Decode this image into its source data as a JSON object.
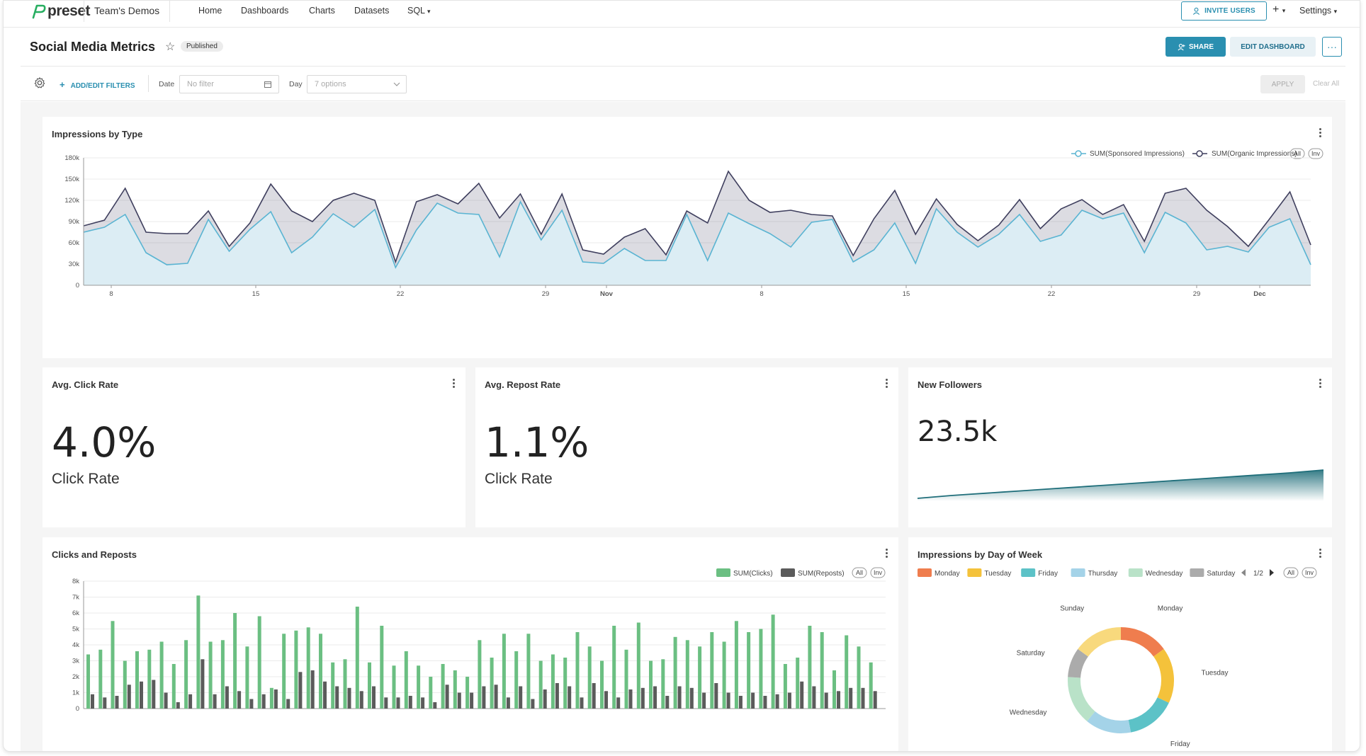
{
  "nav": {
    "brand": "preset",
    "team": "Team's Demos",
    "links": [
      "Home",
      "Dashboards",
      "Charts",
      "Datasets",
      "SQL"
    ],
    "sql_caret": "▾",
    "invite": "INVITE USERS",
    "plus": "+",
    "settings": "Settings"
  },
  "header": {
    "title": "Social Media Metrics",
    "status": "Published",
    "share": "SHARE",
    "edit": "EDIT DASHBOARD",
    "more": "···"
  },
  "filters": {
    "add": "ADD/EDIT FILTERS",
    "date_label": "Date",
    "date_placeholder": "No filter",
    "day_label": "Day",
    "day_placeholder": "7 options",
    "apply": "APPLY",
    "clear": "Clear All"
  },
  "colors": {
    "accent": "#2a8fb0",
    "sponsored": "#5ab4d2",
    "organic": "#3f3f5e",
    "clicks": "#6bbf82",
    "reposts": "#5b5b5b",
    "teal_dark": "#1f6e7a"
  },
  "cards": {
    "impressions": {
      "title": "Impressions by Type",
      "legend": [
        "SUM(Sponsored Impressions)",
        "SUM(Organic Impressions)"
      ],
      "all": "All",
      "inv": "Inv"
    },
    "click_rate": {
      "title": "Avg. Click Rate",
      "value": "4.0%",
      "label": "Click Rate"
    },
    "repost_rate": {
      "title": "Avg. Repost Rate",
      "value": "1.1%",
      "label": "Click Rate"
    },
    "followers": {
      "title": "New Followers",
      "value": "23.5k"
    },
    "clicks": {
      "title": "Clicks and Reposts",
      "legend": [
        "SUM(Clicks)",
        "SUM(Reposts)"
      ],
      "all": "All",
      "inv": "Inv"
    },
    "dow": {
      "title": "Impressions by Day of Week",
      "legend": [
        "Monday",
        "Tuesday",
        "Friday",
        "Thursday",
        "Wednesday",
        "Saturday"
      ],
      "page": "1/2",
      "all": "All",
      "inv": "Inv"
    }
  },
  "chart_data": [
    {
      "type": "area",
      "title": "Impressions by Type",
      "ylim": [
        0,
        180000
      ],
      "yticks": [
        "0",
        "30k",
        "60k",
        "90k",
        "120k",
        "150k",
        "180k"
      ],
      "xticks": [
        "8",
        "15",
        "22",
        "29",
        "Nov",
        "8",
        "15",
        "22",
        "29",
        "Dec"
      ],
      "series": [
        {
          "name": "SUM(Organic Impressions)",
          "values": [
            84000,
            92000,
            137000,
            75000,
            73000,
            73000,
            105000,
            55000,
            88000,
            143000,
            105000,
            90000,
            120000,
            130000,
            120000,
            33000,
            118000,
            128000,
            115000,
            144000,
            95000,
            129000,
            72000,
            129000,
            50000,
            44000,
            68000,
            80000,
            43000,
            105000,
            88000,
            161000,
            120000,
            103000,
            106000,
            100000,
            98000,
            42000,
            94000,
            134000,
            72000,
            122000,
            86000,
            63000,
            85000,
            121000,
            80000,
            108000,
            121000,
            100000,
            114000,
            62000,
            130000,
            137000,
            106000,
            83000,
            55000,
            93000,
            132000,
            57000
          ]
        },
        {
          "name": "SUM(Sponsored Impressions)",
          "values": [
            75000,
            82000,
            100000,
            46000,
            29000,
            31000,
            93000,
            48000,
            79000,
            104000,
            46000,
            68000,
            101000,
            82000,
            107000,
            25000,
            78000,
            116000,
            102000,
            100000,
            40000,
            118000,
            64000,
            106000,
            33000,
            31000,
            52000,
            35000,
            35000,
            100000,
            35000,
            102000,
            87000,
            73000,
            54000,
            89000,
            93000,
            33000,
            50000,
            88000,
            31000,
            108000,
            75000,
            54000,
            72000,
            100000,
            62000,
            71000,
            106000,
            94000,
            102000,
            46000,
            103000,
            88000,
            50000,
            55000,
            47000,
            82000,
            94000,
            29000
          ]
        }
      ]
    },
    {
      "type": "bar",
      "title": "Clicks and Reposts",
      "ylim": [
        0,
        8000
      ],
      "yticks": [
        "0",
        "1k",
        "2k",
        "3k",
        "4k",
        "5k",
        "6k",
        "7k",
        "8k"
      ],
      "series": [
        {
          "name": "SUM(Clicks)",
          "values": [
            3400,
            3700,
            5500,
            3000,
            3600,
            3700,
            4200,
            2800,
            4300,
            7100,
            4200,
            4300,
            6000,
            3900,
            5800,
            1300,
            4700,
            4900,
            5100,
            4700,
            2900,
            3100,
            6400,
            2900,
            5200,
            2700,
            3600,
            2700,
            2000,
            2800,
            2400,
            2000,
            4300,
            3200,
            4700,
            3600,
            4700,
            3000,
            3400,
            3200,
            4800,
            3900,
            3000,
            5200,
            3700,
            5400,
            3000,
            3100,
            4500,
            4300,
            3900,
            4800,
            4200,
            5500,
            4800,
            5000,
            5900,
            2800,
            3200,
            5200,
            4800,
            2400,
            4600,
            3900,
            2900
          ]
        },
        {
          "name": "SUM(Reposts)",
          "values": [
            900,
            700,
            800,
            1500,
            1700,
            1800,
            1000,
            400,
            900,
            3100,
            900,
            1400,
            1100,
            600,
            900,
            1200,
            600,
            2300,
            2400,
            1700,
            1400,
            1300,
            1100,
            1400,
            700,
            700,
            800,
            700,
            400,
            1500,
            1000,
            1000,
            1400,
            1500,
            700,
            1400,
            600,
            1200,
            1600,
            1400,
            700,
            1600,
            1100,
            700,
            1200,
            1300,
            1400,
            800,
            1400,
            1300,
            1000,
            1600,
            1000,
            800,
            1000,
            800,
            900,
            1000,
            1700,
            1400,
            1000,
            1100,
            1300,
            1300,
            1100
          ]
        }
      ]
    },
    {
      "type": "pie",
      "title": "Impressions by Day of Week",
      "labels": [
        "Monday",
        "Tuesday",
        "Friday",
        "Thursday",
        "Wednesday",
        "Saturday",
        "Sunday"
      ],
      "values": [
        15,
        17,
        15,
        14,
        15,
        9,
        15
      ],
      "colors": [
        "#ef7d4e",
        "#f4c23b",
        "#5cc2c7",
        "#a4d3e8",
        "#b9e2c8",
        "#ababab",
        "#f8d97d"
      ]
    },
    {
      "type": "area",
      "title": "New Followers",
      "values": [
        0,
        0.05,
        0.1,
        0.14,
        0.18,
        0.22,
        0.26,
        0.3,
        0.34,
        0.38,
        0.42,
        0.46,
        0.5,
        0.54,
        0.58,
        0.62,
        0.66,
        0.7,
        0.74,
        0.78,
        0.82,
        0.86,
        0.9,
        0.95,
        1.0
      ]
    }
  ]
}
